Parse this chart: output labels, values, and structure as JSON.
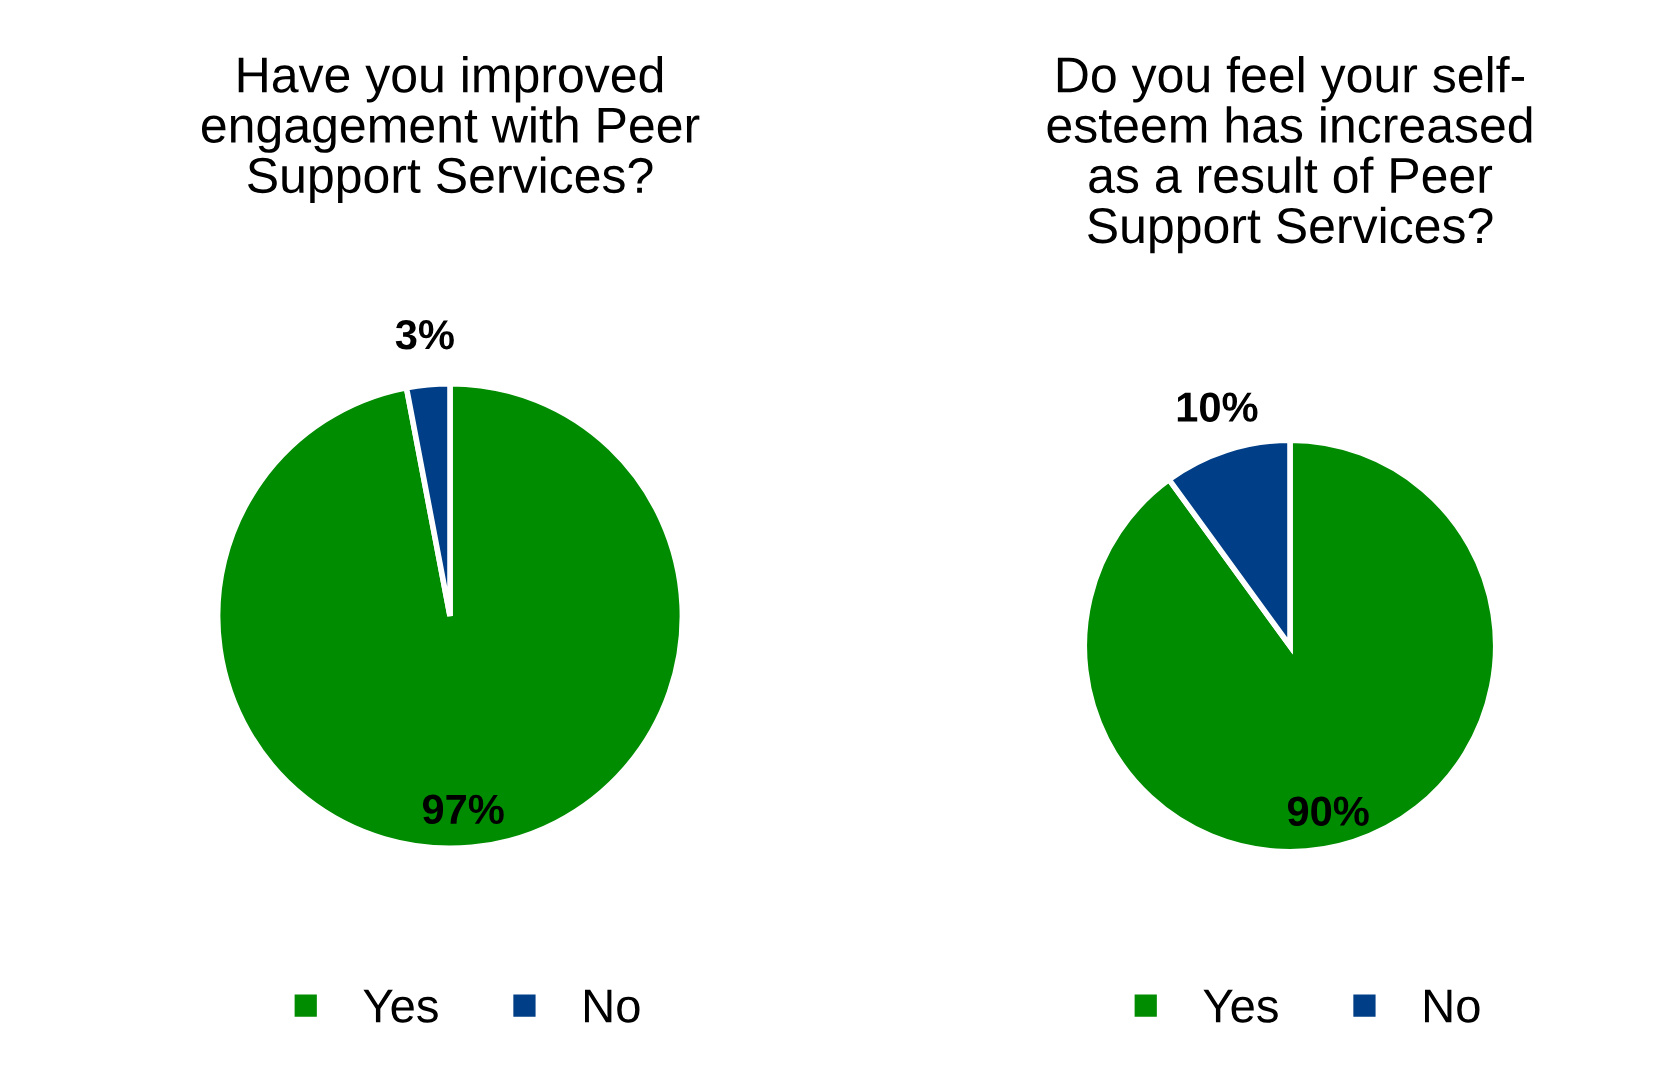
{
  "chart_data": [
    {
      "type": "pie",
      "title": "Have you improved\nengagement with Peer\nSupport Services?",
      "categories": [
        "Yes",
        "No"
      ],
      "values": [
        97,
        3
      ],
      "colors": [
        "#008c00",
        "#003f87"
      ],
      "data_labels": true,
      "value_labels": [
        "97%",
        "3%"
      ],
      "legend": "bottom"
    },
    {
      "type": "pie",
      "title": "Do you feel your self-\nesteem has increased\nas a result of Peer\nSupport Services?",
      "categories": [
        "Yes",
        "No"
      ],
      "values": [
        90,
        10
      ],
      "colors": [
        "#008c00",
        "#003f87"
      ],
      "data_labels": true,
      "value_labels": [
        "90%",
        "10%"
      ],
      "legend": "bottom"
    }
  ]
}
